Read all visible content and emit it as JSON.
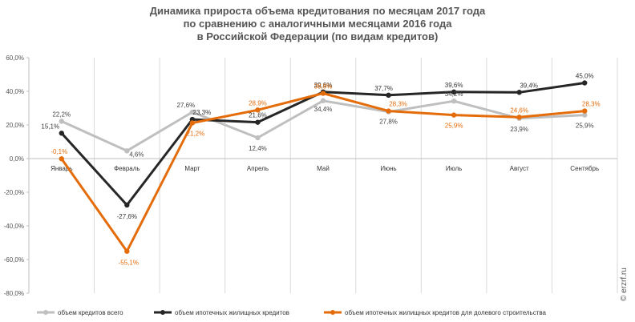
{
  "chart_data": {
    "type": "line",
    "title_lines": [
      "Динамика прироста объема кредитования по месяцам 2017 года",
      "по сравнению с аналогичными месяцами 2016 года",
      "в Российской Федерации (по видам кредитов)"
    ],
    "categories": [
      "Январь",
      "Февраль",
      "Март",
      "Апрель",
      "Май",
      "Июнь",
      "Июль",
      "Август",
      "Сентябрь"
    ],
    "yticks": [
      "60,0%",
      "40,0%",
      "20,0%",
      "0,0%",
      "-20,0%",
      "-40,0%",
      "-60,0%",
      "-80,0%"
    ],
    "ylim": [
      -80,
      60
    ],
    "ytick_step": 20,
    "grid": "vertical",
    "legend_position": "bottom",
    "series": [
      {
        "name": "объем кредитов всего",
        "color": "#bfbfbf",
        "marker_color": "#bfbfbf",
        "label_color": "#444444",
        "values": [
          22.2,
          4.6,
          27.6,
          12.4,
          34.4,
          27.8,
          34.2,
          23.9,
          25.9
        ],
        "labels": [
          "22,2%",
          "4,6%",
          "27,6%",
          "12,4%",
          "34,4%",
          "27,8%",
          "34,2%",
          "23,9%",
          "25,9%"
        ]
      },
      {
        "name": "объем ипотечных жилищных кредитов",
        "color": "#262626",
        "marker_color": "#262626",
        "label_color": "#333333",
        "values": [
          15.1,
          -27.6,
          23.3,
          21.6,
          39.6,
          37.7,
          39.6,
          39.4,
          45.0
        ],
        "labels": [
          "15,1%",
          "-27,6%",
          "23,3%",
          "21,6%",
          "39,6%",
          "37,7%",
          "39,6%",
          "39,4%",
          "45,0%"
        ]
      },
      {
        "name": "объем ипотечных жилищных кредитов для долевого строительства",
        "color": "#e46c0a",
        "marker_color": "#e46c0a",
        "label_color": "#e46c0a",
        "values": [
          -0.1,
          -55.1,
          21.2,
          28.9,
          38.8,
          28.3,
          25.9,
          24.6,
          28.3
        ],
        "labels": [
          "-0,1%",
          "-55,1%",
          "21,2%",
          "28,9%",
          "38,8%",
          "28,3%",
          "25,9%",
          "24,6%",
          "28,3%"
        ]
      }
    ]
  },
  "watermark": "© erzrf.ru"
}
